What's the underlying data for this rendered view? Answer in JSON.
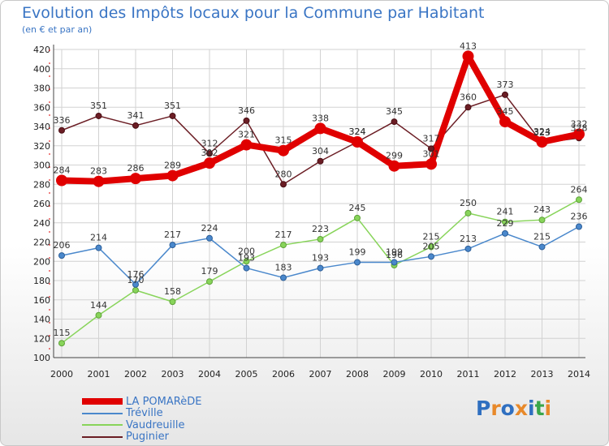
{
  "title": "Evolution des Impôts locaux pour la Commune par Habitant",
  "subtitle": "(en € et par an)",
  "logo": {
    "text": "Proxiti",
    "letters": [
      [
        "P",
        "#2f6fc0"
      ],
      [
        "r",
        "#e8892a"
      ],
      [
        "o",
        "#2f6fc0"
      ],
      [
        "x",
        "#e8892a"
      ],
      [
        "i",
        "#2f6fc0"
      ],
      [
        "t",
        "#3aa64a"
      ],
      [
        "i",
        "#e8892a"
      ]
    ]
  },
  "chart_data": {
    "type": "line",
    "title": "Evolution des Impôts locaux pour la Commune par Habitant",
    "subtitle": "(en € et par an)",
    "xlabel": "",
    "ylabel": "",
    "x": [
      "2000",
      "2001",
      "2002",
      "2003",
      "2004",
      "2005",
      "2006",
      "2007",
      "2008",
      "2009",
      "2010",
      "2011",
      "2012",
      "2013",
      "2014"
    ],
    "ylim": [
      100,
      420
    ],
    "yticks": [
      100,
      120,
      140,
      160,
      180,
      200,
      220,
      240,
      260,
      280,
      300,
      320,
      340,
      360,
      380,
      400,
      420
    ],
    "grid": true,
    "legend_position": "bottom-left",
    "series": [
      {
        "name": "LA POMARèDE",
        "color": "#e00000",
        "values": [
          284,
          283,
          286,
          289,
          302,
          321,
          315,
          338,
          324,
          299,
          301,
          413,
          345,
          324,
          332
        ]
      },
      {
        "name": "Tréville",
        "color": "#4a88cc",
        "values": [
          206,
          214,
          176,
          217,
          224,
          193,
          183,
          193,
          199,
          199,
          205,
          213,
          229,
          215,
          236
        ]
      },
      {
        "name": "Vaudreuille",
        "color": "#88d45a",
        "values": [
          115,
          144,
          170,
          158,
          179,
          200,
          217,
          223,
          245,
          196,
          215,
          250,
          241,
          243,
          264
        ]
      },
      {
        "name": "Puginier",
        "color": "#6b1d24",
        "values": [
          336,
          351,
          341,
          351,
          312,
          346,
          280,
          304,
          324,
          345,
          317,
          360,
          373,
          323,
          328
        ]
      }
    ]
  }
}
